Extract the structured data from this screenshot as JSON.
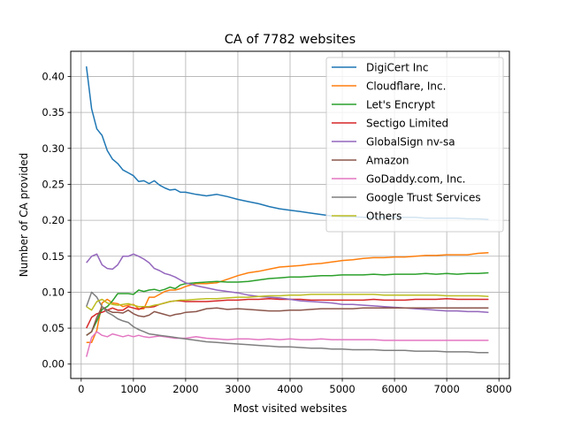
{
  "chart_data": {
    "type": "line",
    "title": "CA of 7782 websites",
    "xlabel": "Most visited websites",
    "ylabel": "Number of CA provided",
    "xlim": [
      -200,
      8200
    ],
    "ylim": [
      -0.02,
      0.435
    ],
    "x_ticks": [
      0,
      1000,
      2000,
      3000,
      4000,
      5000,
      6000,
      7000,
      8000
    ],
    "y_ticks": [
      0.0,
      0.05,
      0.1,
      0.15,
      0.2,
      0.25,
      0.3,
      0.35,
      0.4
    ],
    "grid": true,
    "legend_position": "upper right",
    "x": [
      100,
      200,
      300,
      400,
      500,
      600,
      700,
      800,
      900,
      1000,
      1100,
      1200,
      1300,
      1400,
      1500,
      1600,
      1700,
      1800,
      1900,
      2000,
      2200,
      2400,
      2600,
      2800,
      3000,
      3200,
      3400,
      3600,
      3800,
      4000,
      4200,
      4400,
      4600,
      4800,
      5000,
      5200,
      5400,
      5600,
      5800,
      6000,
      6200,
      6400,
      6600,
      6800,
      7000,
      7200,
      7400,
      7600,
      7800
    ],
    "series": [
      {
        "name": "DigiCert Inc",
        "color": "#1f77b4",
        "values": [
          0.414,
          0.355,
          0.327,
          0.318,
          0.297,
          0.285,
          0.279,
          0.27,
          0.266,
          0.262,
          0.254,
          0.255,
          0.251,
          0.255,
          0.249,
          0.245,
          0.242,
          0.243,
          0.239,
          0.239,
          0.236,
          0.234,
          0.236,
          0.233,
          0.229,
          0.226,
          0.223,
          0.219,
          0.216,
          0.214,
          0.212,
          0.21,
          0.208,
          0.206,
          0.205,
          0.205,
          0.204,
          0.204,
          0.204,
          0.204,
          0.204,
          0.204,
          0.203,
          0.203,
          0.203,
          0.203,
          0.202,
          0.202,
          0.201
        ]
      },
      {
        "name": "Cloudflare, Inc.",
        "color": "#ff7f0e",
        "values": [
          0.03,
          0.03,
          0.047,
          0.085,
          0.09,
          0.085,
          0.084,
          0.08,
          0.082,
          0.083,
          0.077,
          0.077,
          0.093,
          0.093,
          0.097,
          0.101,
          0.103,
          0.103,
          0.105,
          0.108,
          0.112,
          0.112,
          0.113,
          0.118,
          0.123,
          0.127,
          0.129,
          0.132,
          0.135,
          0.136,
          0.137,
          0.139,
          0.14,
          0.142,
          0.144,
          0.145,
          0.147,
          0.148,
          0.148,
          0.149,
          0.149,
          0.15,
          0.151,
          0.151,
          0.152,
          0.152,
          0.152,
          0.154,
          0.155
        ]
      },
      {
        "name": "Let's Encrypt",
        "color": "#2ca02c",
        "values": [
          0.04,
          0.045,
          0.06,
          0.076,
          0.08,
          0.088,
          0.098,
          0.098,
          0.098,
          0.097,
          0.103,
          0.101,
          0.103,
          0.104,
          0.102,
          0.104,
          0.107,
          0.105,
          0.11,
          0.112,
          0.113,
          0.114,
          0.115,
          0.114,
          0.114,
          0.115,
          0.117,
          0.119,
          0.12,
          0.121,
          0.121,
          0.122,
          0.123,
          0.123,
          0.124,
          0.124,
          0.124,
          0.125,
          0.124,
          0.125,
          0.125,
          0.125,
          0.126,
          0.125,
          0.126,
          0.125,
          0.126,
          0.126,
          0.127
        ]
      },
      {
        "name": "Sectigo Limited",
        "color": "#d62728",
        "values": [
          0.05,
          0.065,
          0.07,
          0.072,
          0.075,
          0.078,
          0.075,
          0.075,
          0.08,
          0.078,
          0.076,
          0.079,
          0.079,
          0.08,
          0.083,
          0.085,
          0.087,
          0.088,
          0.088,
          0.087,
          0.087,
          0.087,
          0.088,
          0.089,
          0.089,
          0.09,
          0.09,
          0.091,
          0.09,
          0.09,
          0.09,
          0.089,
          0.089,
          0.089,
          0.089,
          0.089,
          0.089,
          0.09,
          0.089,
          0.089,
          0.089,
          0.09,
          0.09,
          0.09,
          0.091,
          0.09,
          0.09,
          0.09,
          0.09
        ]
      },
      {
        "name": "GlobalSign nv-sa",
        "color": "#9467bd",
        "values": [
          0.141,
          0.15,
          0.153,
          0.138,
          0.133,
          0.132,
          0.138,
          0.15,
          0.15,
          0.153,
          0.15,
          0.146,
          0.141,
          0.133,
          0.13,
          0.126,
          0.124,
          0.121,
          0.117,
          0.113,
          0.109,
          0.106,
          0.103,
          0.101,
          0.099,
          0.096,
          0.094,
          0.093,
          0.092,
          0.09,
          0.088,
          0.087,
          0.086,
          0.085,
          0.083,
          0.083,
          0.082,
          0.081,
          0.08,
          0.079,
          0.078,
          0.077,
          0.076,
          0.075,
          0.074,
          0.074,
          0.073,
          0.073,
          0.072
        ]
      },
      {
        "name": "Amazon",
        "color": "#8c564b",
        "values": [
          0.04,
          0.045,
          0.065,
          0.08,
          0.075,
          0.072,
          0.072,
          0.071,
          0.075,
          0.07,
          0.067,
          0.066,
          0.068,
          0.073,
          0.071,
          0.069,
          0.067,
          0.069,
          0.07,
          0.072,
          0.073,
          0.077,
          0.078,
          0.076,
          0.077,
          0.076,
          0.075,
          0.074,
          0.074,
          0.075,
          0.075,
          0.076,
          0.077,
          0.077,
          0.077,
          0.077,
          0.078,
          0.078,
          0.078,
          0.078,
          0.078,
          0.078,
          0.078,
          0.078,
          0.078,
          0.078,
          0.078,
          0.078,
          0.078
        ]
      },
      {
        "name": "GoDaddy.com, Inc.",
        "color": "#e377c2",
        "values": [
          0.01,
          0.037,
          0.045,
          0.04,
          0.038,
          0.042,
          0.04,
          0.038,
          0.04,
          0.038,
          0.04,
          0.038,
          0.037,
          0.038,
          0.039,
          0.038,
          0.037,
          0.036,
          0.036,
          0.036,
          0.038,
          0.036,
          0.035,
          0.034,
          0.035,
          0.035,
          0.034,
          0.035,
          0.034,
          0.035,
          0.034,
          0.034,
          0.035,
          0.034,
          0.034,
          0.034,
          0.034,
          0.034,
          0.033,
          0.033,
          0.033,
          0.033,
          0.033,
          0.033,
          0.033,
          0.033,
          0.033,
          0.033,
          0.033
        ]
      },
      {
        "name": "Google Trust Services",
        "color": "#7f7f7f",
        "values": [
          0.08,
          0.1,
          0.093,
          0.08,
          0.072,
          0.068,
          0.063,
          0.06,
          0.058,
          0.052,
          0.048,
          0.045,
          0.042,
          0.041,
          0.04,
          0.039,
          0.038,
          0.037,
          0.036,
          0.035,
          0.033,
          0.031,
          0.03,
          0.029,
          0.028,
          0.027,
          0.026,
          0.025,
          0.024,
          0.024,
          0.023,
          0.022,
          0.022,
          0.021,
          0.021,
          0.02,
          0.02,
          0.02,
          0.019,
          0.019,
          0.019,
          0.018,
          0.018,
          0.018,
          0.017,
          0.017,
          0.017,
          0.016,
          0.016
        ]
      },
      {
        "name": "Others",
        "color": "#bcbd22",
        "values": [
          0.08,
          0.075,
          0.087,
          0.09,
          0.085,
          0.083,
          0.082,
          0.083,
          0.084,
          0.082,
          0.08,
          0.08,
          0.08,
          0.082,
          0.083,
          0.085,
          0.087,
          0.088,
          0.089,
          0.089,
          0.09,
          0.091,
          0.091,
          0.092,
          0.093,
          0.093,
          0.094,
          0.095,
          0.095,
          0.096,
          0.096,
          0.097,
          0.097,
          0.097,
          0.097,
          0.097,
          0.097,
          0.097,
          0.096,
          0.096,
          0.096,
          0.096,
          0.096,
          0.096,
          0.095,
          0.095,
          0.095,
          0.095,
          0.094
        ]
      }
    ]
  }
}
